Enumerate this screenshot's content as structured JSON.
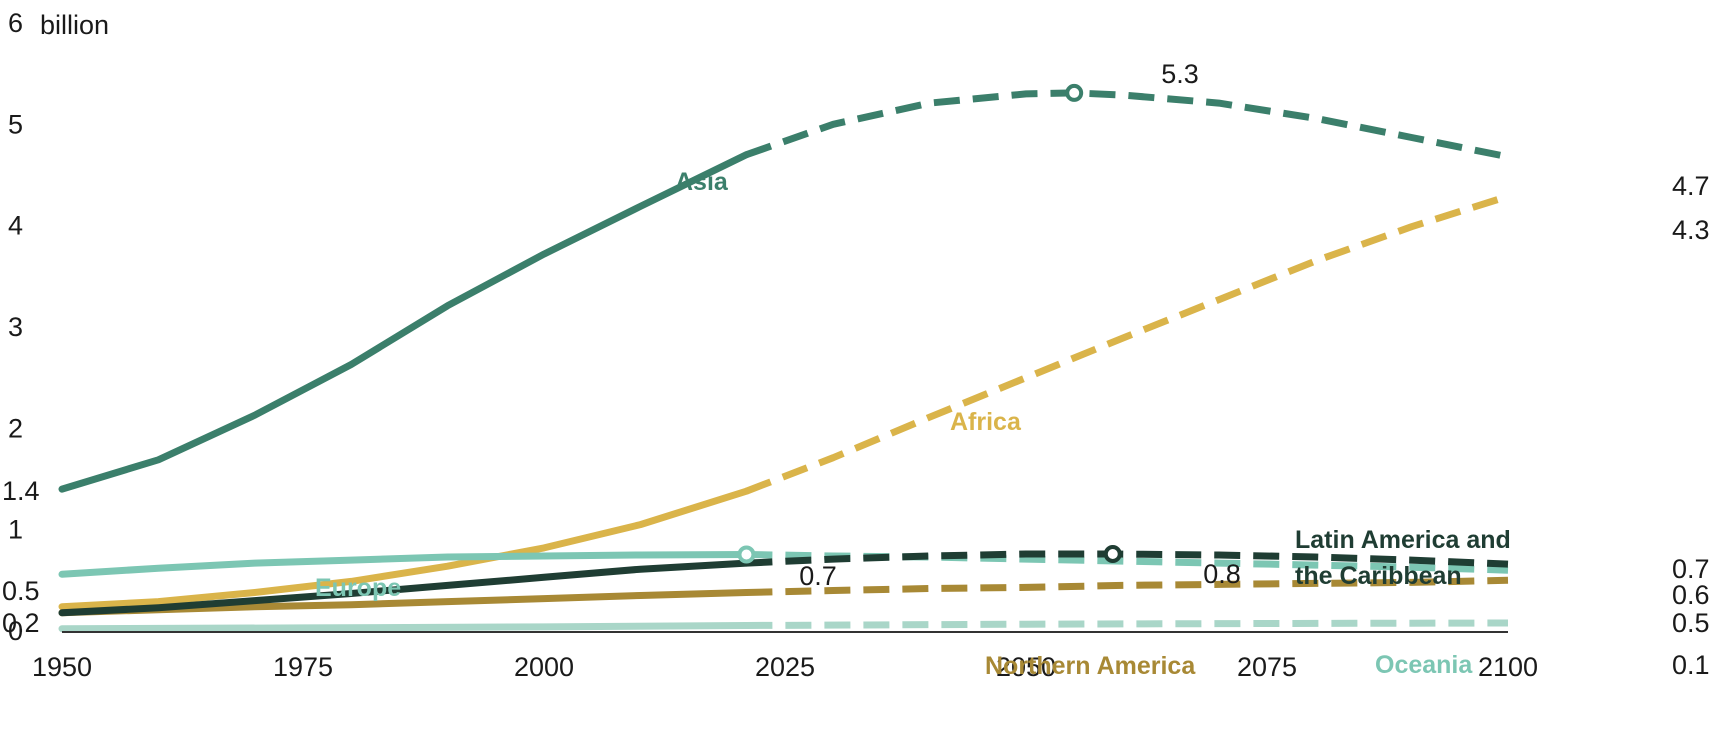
{
  "chart_data": {
    "type": "line",
    "title": "",
    "xlabel": "",
    "ylabel": "",
    "y_unit": "billion",
    "xlim": [
      1950,
      2100
    ],
    "ylim": [
      0,
      6
    ],
    "projection_start": 2021,
    "x_ticks": [
      "1950",
      "1975",
      "2000",
      "2025",
      "2050",
      "2075",
      "2100"
    ],
    "y_ticks": [
      "0",
      "1",
      "2",
      "3",
      "4",
      "5",
      "6"
    ],
    "start_labels": [
      "1.4",
      "0.5",
      "0.2"
    ],
    "end_labels": [
      "4.7",
      "4.3",
      "0.7",
      "0.6",
      "0.5",
      "0.1"
    ],
    "peak_labels": [
      "5.3",
      "0.7",
      "0.8"
    ],
    "series": [
      {
        "name": "Asia",
        "color": "#3b7f6b",
        "x": [
          1950,
          1960,
          1970,
          1980,
          1990,
          2000,
          2010,
          2021,
          2030,
          2040,
          2050,
          2055,
          2060,
          2070,
          2080,
          2090,
          2100
        ],
        "values": [
          1.39,
          1.68,
          2.12,
          2.62,
          3.2,
          3.71,
          4.18,
          4.69,
          4.99,
          5.2,
          5.29,
          5.3,
          5.28,
          5.2,
          5.05,
          4.86,
          4.67
        ]
      },
      {
        "name": "Africa",
        "color": "#dab44a",
        "x": [
          1950,
          1960,
          1970,
          1980,
          1990,
          2000,
          2010,
          2021,
          2030,
          2040,
          2050,
          2060,
          2070,
          2080,
          2090,
          2100
        ],
        "values": [
          0.23,
          0.28,
          0.37,
          0.48,
          0.63,
          0.81,
          1.04,
          1.37,
          1.7,
          2.1,
          2.49,
          2.88,
          3.26,
          3.64,
          3.98,
          4.28
        ]
      },
      {
        "name": "Europe",
        "color": "#7cc6b3",
        "x": [
          1950,
          1960,
          1970,
          1980,
          1990,
          2000,
          2010,
          2021,
          2030,
          2040,
          2050,
          2060,
          2070,
          2080,
          2090,
          2100
        ],
        "values": [
          0.55,
          0.61,
          0.66,
          0.69,
          0.72,
          0.73,
          0.74,
          0.745,
          0.73,
          0.72,
          0.7,
          0.68,
          0.66,
          0.64,
          0.62,
          0.59
        ]
      },
      {
        "name": "Latin America and the Caribbean",
        "color": "#1f3d33",
        "x": [
          1950,
          1960,
          1970,
          1980,
          1990,
          2000,
          2010,
          2021,
          2030,
          2040,
          2050,
          2059,
          2070,
          2080,
          2090,
          2100
        ],
        "values": [
          0.17,
          0.22,
          0.29,
          0.36,
          0.44,
          0.52,
          0.6,
          0.66,
          0.7,
          0.73,
          0.75,
          0.75,
          0.74,
          0.72,
          0.69,
          0.65
        ]
      },
      {
        "name": "Northern America",
        "color": "#a88935",
        "x": [
          1950,
          1960,
          1970,
          1980,
          1990,
          2000,
          2010,
          2021,
          2030,
          2040,
          2050,
          2060,
          2070,
          2080,
          2090,
          2100
        ],
        "values": [
          0.17,
          0.2,
          0.23,
          0.25,
          0.28,
          0.31,
          0.34,
          0.37,
          0.39,
          0.41,
          0.42,
          0.44,
          0.45,
          0.46,
          0.47,
          0.49
        ]
      },
      {
        "name": "Oceania",
        "color": "#a9d6c8",
        "x": [
          1950,
          1975,
          2000,
          2021,
          2050,
          2075,
          2100
        ],
        "values": [
          0.013,
          0.021,
          0.031,
          0.044,
          0.057,
          0.064,
          0.069
        ]
      }
    ]
  }
}
